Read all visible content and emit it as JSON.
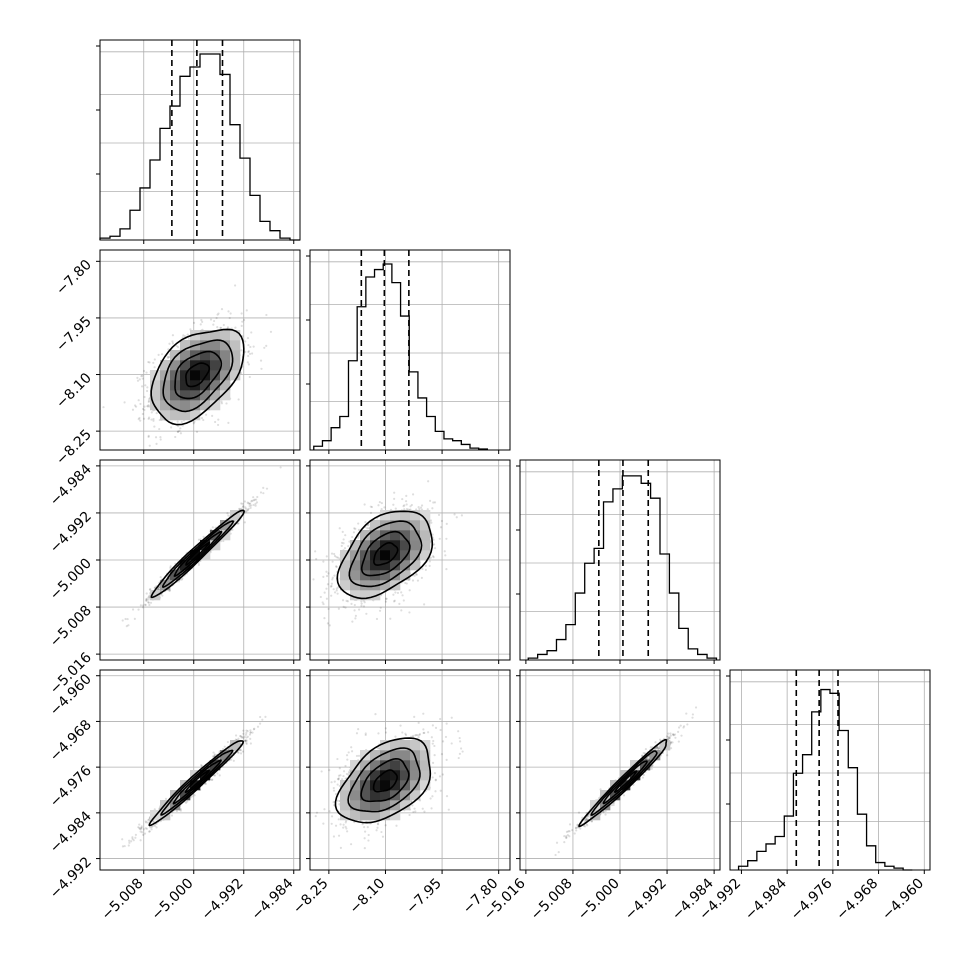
{
  "chart_data": {
    "type": "corner",
    "title": "",
    "grid": true,
    "parameters": [
      {
        "index": 0,
        "label": "",
        "lim": [
          -5.015,
          -4.983
        ],
        "mean": -4.9995,
        "std": 0.0037,
        "quantiles": [
          -5.0035,
          -4.9995,
          -4.9954
        ],
        "ticks": [
          -5.008,
          -5.0,
          -4.992,
          -4.984
        ],
        "tick_labels": [
          "−5.008",
          "−5.000",
          "−4.992",
          "−4.984"
        ]
      },
      {
        "index": 1,
        "label": "",
        "lim": [
          -8.3,
          -7.77
        ],
        "mean": -8.1,
        "std": 0.062,
        "quantiles": [
          -8.164,
          -8.103,
          -8.038
        ],
        "ticks": [
          -8.25,
          -8.1,
          -7.95,
          -7.8
        ],
        "tick_labels": [
          "−8.25",
          "−8.10",
          "−7.95",
          "−7.80"
        ]
      },
      {
        "index": 2,
        "label": "",
        "lim": [
          -5.017,
          -4.983
        ],
        "mean": -4.999,
        "std": 0.0037,
        "quantiles": [
          -5.0036,
          -4.9995,
          -4.9952
        ],
        "ticks": [
          -5.016,
          -5.008,
          -5.0,
          -4.992,
          -4.984
        ],
        "tick_labels": [
          "−5.016",
          "−5.008",
          "−5.000",
          "−4.992",
          "−4.984"
        ]
      },
      {
        "index": 3,
        "label": "",
        "lim": [
          -4.994,
          -4.959
        ],
        "mean": -4.9785,
        "std": 0.0037,
        "quantiles": [
          -4.9824,
          -4.9784,
          -4.9751
        ],
        "ticks": [
          -4.992,
          -4.984,
          -4.976,
          -4.968,
          -4.96
        ],
        "tick_labels": [
          "−4.992",
          "−4.984",
          "−4.976",
          "−4.968",
          "−4.960"
        ]
      }
    ],
    "histograms": [
      {
        "param": 0,
        "bin_edges": [
          -5.015,
          -5.0134,
          -5.0118,
          -5.0102,
          -5.0086,
          -5.007,
          -5.0054,
          -5.0038,
          -5.0022,
          -5.0006,
          -4.999,
          -4.9974,
          -4.9958,
          -4.9942,
          -4.9926,
          -4.991,
          -4.9894,
          -4.9878,
          -4.9862,
          -4.9846,
          -4.983
        ],
        "counts": [
          0.01,
          0.02,
          0.06,
          0.16,
          0.28,
          0.43,
          0.6,
          0.72,
          0.88,
          0.93,
          1.0,
          1.0,
          0.89,
          0.62,
          0.44,
          0.24,
          0.1,
          0.05,
          0.01,
          0.0
        ]
      },
      {
        "param": 1,
        "bin_edges": [
          -8.29,
          -8.267,
          -8.244,
          -8.221,
          -8.198,
          -8.175,
          -8.152,
          -8.129,
          -8.106,
          -8.083,
          -8.06,
          -8.037,
          -8.014,
          -7.991,
          -7.968,
          -7.945,
          -7.922,
          -7.899,
          -7.876,
          -7.853,
          -7.83
        ],
        "counts": [
          0.02,
          0.05,
          0.12,
          0.18,
          0.48,
          0.77,
          0.93,
          0.97,
          1.0,
          0.9,
          0.72,
          0.42,
          0.28,
          0.18,
          0.1,
          0.06,
          0.05,
          0.03,
          0.01,
          0.005
        ]
      },
      {
        "param": 2,
        "bin_edges": [
          -5.0156,
          -5.014,
          -5.0124,
          -5.0108,
          -5.0092,
          -5.0076,
          -5.006,
          -5.0044,
          -5.0028,
          -5.0012,
          -4.9996,
          -4.998,
          -4.9964,
          -4.9948,
          -4.9932,
          -4.9916,
          -4.99,
          -4.9884,
          -4.9868,
          -4.9852,
          -4.9836
        ],
        "counts": [
          0.01,
          0.03,
          0.05,
          0.11,
          0.19,
          0.36,
          0.52,
          0.6,
          0.85,
          0.92,
          0.99,
          0.99,
          0.95,
          0.87,
          0.57,
          0.36,
          0.17,
          0.06,
          0.03,
          0.01
        ]
      },
      {
        "param": 3,
        "bin_edges": [
          -4.9925,
          -4.9909,
          -4.9893,
          -4.9877,
          -4.9861,
          -4.9845,
          -4.9829,
          -4.9813,
          -4.9797,
          -4.9781,
          -4.9765,
          -4.9749,
          -4.9733,
          -4.9717,
          -4.9701,
          -4.9685,
          -4.9669,
          -4.9653,
          -4.9637,
          -4.9621
        ],
        "counts": [
          0.02,
          0.05,
          0.1,
          0.14,
          0.18,
          0.29,
          0.52,
          0.62,
          0.85,
          0.97,
          0.95,
          0.75,
          0.55,
          0.3,
          0.13,
          0.04,
          0.02,
          0.01,
          0.0
        ]
      }
    ],
    "pairs": [
      {
        "x": 0,
        "y": 1,
        "correlation": 0.45
      },
      {
        "x": 0,
        "y": 2,
        "correlation": 0.98
      },
      {
        "x": 1,
        "y": 2,
        "correlation": 0.45
      },
      {
        "x": 0,
        "y": 3,
        "correlation": 0.98
      },
      {
        "x": 1,
        "y": 3,
        "correlation": 0.45
      },
      {
        "x": 2,
        "y": 3,
        "correlation": 0.98
      }
    ],
    "contour_levels_sigma": [
      0.5,
      1.0,
      1.5,
      2.0
    ]
  }
}
